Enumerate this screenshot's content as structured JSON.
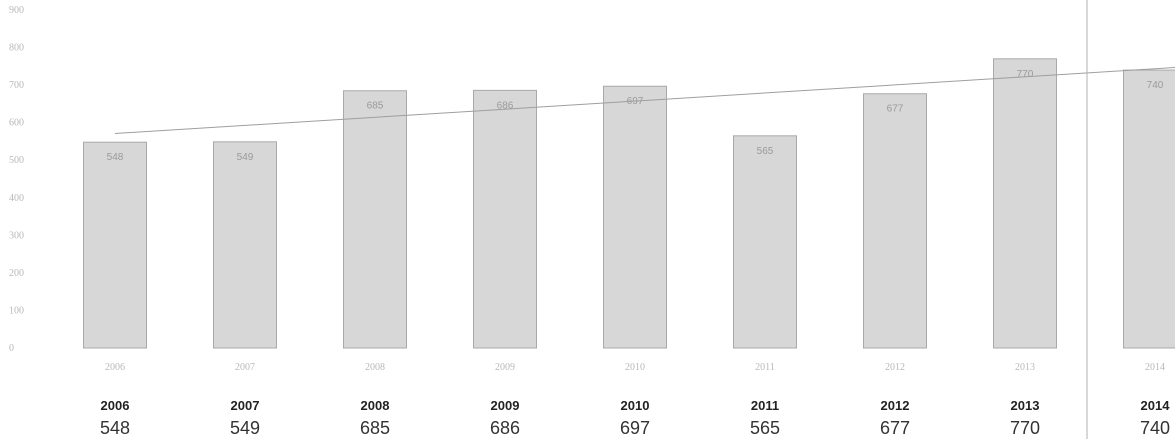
{
  "chart_data": {
    "type": "bar",
    "categories": [
      "2006",
      "2007",
      "2008",
      "2009",
      "2010",
      "2011",
      "2012",
      "2013",
      "2014"
    ],
    "values": [
      548,
      549,
      685,
      686,
      697,
      565,
      677,
      770,
      740
    ],
    "bar_labels": [
      "548",
      "549",
      "685",
      "686",
      "697",
      "565",
      "677",
      "770",
      "740"
    ],
    "ylim": [
      0,
      900
    ],
    "yticks": [
      0,
      100,
      200,
      300,
      400,
      500,
      600,
      700,
      800,
      900
    ],
    "ytick_labels": [
      "0",
      "100",
      "200",
      "300",
      "400",
      "500",
      "600",
      "700",
      "800",
      "900"
    ],
    "trendline": {
      "type": "linear",
      "visible": true
    },
    "grid": false,
    "legend": "none",
    "colors": {
      "bar_fill": "#d7d7d7",
      "bar_stroke": "#a9a9a9",
      "trendline": "#9e9e9e",
      "divider": "#b0b0b0"
    }
  },
  "table": {
    "years": [
      "2006",
      "2007",
      "2008",
      "2009",
      "2010",
      "2011",
      "2012",
      "2013",
      "2014"
    ],
    "values": [
      "548",
      "549",
      "685",
      "686",
      "697",
      "565",
      "677",
      "770",
      "740"
    ]
  }
}
